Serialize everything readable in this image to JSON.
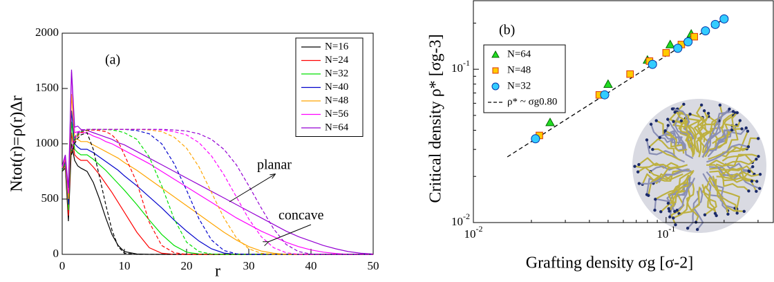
{
  "chart_data": [
    {
      "type": "line",
      "x_label": "r",
      "y_label": "Ntot(r)=ρ(r)Δr",
      "annotations": [
        {
          "text": "(a)"
        },
        {
          "text": "planar"
        },
        {
          "text": "concave"
        }
      ],
      "xlim": [
        0,
        50
      ],
      "ylim": [
        0,
        2000
      ],
      "xticks": [
        0,
        10,
        20,
        30,
        40,
        50
      ],
      "yticks": [
        0,
        500,
        1000,
        1500,
        2000
      ],
      "legend": "upper right",
      "x": [
        0,
        0.5,
        1,
        1.5,
        2,
        2.5,
        3,
        4,
        5,
        6,
        7,
        8,
        9,
        10,
        12,
        14,
        16,
        18,
        20,
        22,
        24,
        26,
        28,
        30,
        32,
        34,
        36,
        38,
        40,
        42,
        44,
        46,
        48,
        50
      ],
      "series": [
        {
          "name": "N=16",
          "color": "#000000",
          "style": "solid",
          "values": [
            750,
            780,
            300,
            1000,
            850,
            800,
            780,
            750,
            650,
            500,
            330,
            180,
            80,
            25,
            3,
            0,
            0,
            0,
            0,
            0,
            0,
            0,
            0,
            0,
            0,
            0,
            0,
            0,
            0,
            0,
            0,
            0,
            0,
            0
          ]
        },
        {
          "name": "N=24",
          "color": "#ff0000",
          "style": "solid",
          "values": [
            760,
            800,
            350,
            1100,
            900,
            870,
            850,
            850,
            790,
            720,
            640,
            560,
            470,
            380,
            200,
            60,
            10,
            0,
            0,
            0,
            0,
            0,
            0,
            0,
            0,
            0,
            0,
            0,
            0,
            0,
            0,
            0,
            0,
            0
          ]
        },
        {
          "name": "N=32",
          "color": "#00e000",
          "style": "solid",
          "values": [
            760,
            820,
            400,
            1200,
            950,
            920,
            900,
            900,
            860,
            810,
            760,
            700,
            640,
            580,
            450,
            310,
            180,
            80,
            20,
            3,
            0,
            0,
            0,
            0,
            0,
            0,
            0,
            0,
            0,
            0,
            0,
            0,
            0,
            0
          ]
        },
        {
          "name": "N=40",
          "color": "#0000cc",
          "style": "solid",
          "values": [
            770,
            840,
            450,
            1300,
            1000,
            970,
            950,
            950,
            920,
            880,
            840,
            800,
            760,
            710,
            620,
            520,
            420,
            310,
            210,
            120,
            50,
            12,
            0,
            0,
            0,
            0,
            0,
            0,
            0,
            0,
            0,
            0,
            0,
            0
          ]
        },
        {
          "name": "N=48",
          "color": "#ffa500",
          "style": "solid",
          "values": [
            780,
            860,
            500,
            1450,
            1050,
            1040,
            1020,
            1020,
            990,
            960,
            930,
            900,
            870,
            830,
            760,
            680,
            600,
            520,
            440,
            360,
            280,
            200,
            130,
            70,
            30,
            10,
            0,
            0,
            0,
            0,
            0,
            0,
            0,
            0
          ]
        },
        {
          "name": "N=56",
          "color": "#ff00ff",
          "style": "solid",
          "values": [
            790,
            880,
            550,
            1650,
            1100,
            1110,
            1100,
            1100,
            1070,
            1050,
            1020,
            1000,
            970,
            940,
            880,
            820,
            750,
            680,
            610,
            540,
            470,
            400,
            330,
            270,
            210,
            160,
            110,
            70,
            40,
            20,
            8,
            0,
            0,
            0
          ]
        },
        {
          "name": "N=64",
          "color": "#9400d3",
          "style": "solid",
          "values": [
            800,
            900,
            600,
            1670,
            1150,
            1160,
            1130,
            1120,
            1100,
            1080,
            1060,
            1040,
            1010,
            990,
            930,
            870,
            810,
            750,
            690,
            630,
            570,
            510,
            450,
            390,
            330,
            270,
            210,
            160,
            120,
            80,
            50,
            25,
            10,
            3
          ]
        },
        {
          "color": "#000000",
          "style": "dashed",
          "values": [
            null,
            null,
            null,
            900,
            1000,
            1050,
            1080,
            1100,
            950,
            700,
            450,
            220,
            70,
            10,
            0,
            0,
            0,
            0,
            0,
            0,
            0,
            0,
            0,
            0,
            0,
            0,
            0,
            0,
            0,
            0,
            0,
            0,
            0,
            0
          ]
        },
        {
          "color": "#ff0000",
          "style": "dashed",
          "values": [
            null,
            null,
            null,
            920,
            1020,
            1070,
            1100,
            1120,
            1125,
            1120,
            1110,
            1080,
            1020,
            900,
            650,
            290,
            80,
            15,
            0,
            0,
            0,
            0,
            0,
            0,
            0,
            0,
            0,
            0,
            0,
            0,
            0,
            0,
            0,
            0
          ]
        },
        {
          "color": "#00e000",
          "style": "dashed",
          "values": [
            null,
            null,
            null,
            930,
            1030,
            1080,
            1110,
            1125,
            1130,
            1130,
            1128,
            1125,
            1115,
            1100,
            1040,
            880,
            620,
            320,
            110,
            25,
            3,
            0,
            0,
            0,
            0,
            0,
            0,
            0,
            0,
            0,
            0,
            0,
            0,
            0
          ]
        },
        {
          "color": "#0000cc",
          "style": "dashed",
          "values": [
            null,
            null,
            null,
            940,
            1040,
            1090,
            1115,
            1130,
            1130,
            1130,
            1130,
            1130,
            1130,
            1130,
            1120,
            1090,
            1000,
            820,
            580,
            320,
            130,
            35,
            5,
            0,
            0,
            0,
            0,
            0,
            0,
            0,
            0,
            0,
            0,
            0
          ]
        },
        {
          "color": "#ffa500",
          "style": "dashed",
          "values": [
            null,
            null,
            null,
            945,
            1045,
            1095,
            1120,
            1130,
            1130,
            1130,
            1130,
            1130,
            1130,
            1130,
            1130,
            1125,
            1110,
            1060,
            960,
            790,
            560,
            330,
            150,
            50,
            10,
            0,
            0,
            0,
            0,
            0,
            0,
            0,
            0,
            0
          ]
        },
        {
          "color": "#ff00ff",
          "style": "dashed",
          "values": [
            null,
            null,
            null,
            950,
            1050,
            1100,
            1120,
            1130,
            1130,
            1130,
            1130,
            1130,
            1130,
            1130,
            1130,
            1130,
            1125,
            1110,
            1080,
            1010,
            890,
            720,
            520,
            320,
            160,
            60,
            15,
            0,
            0,
            0,
            0,
            0,
            0,
            0
          ]
        },
        {
          "color": "#9400d3",
          "style": "dashed",
          "values": [
            null,
            null,
            null,
            955,
            1055,
            1100,
            1125,
            1130,
            1130,
            1130,
            1130,
            1130,
            1130,
            1130,
            1130,
            1130,
            1130,
            1125,
            1115,
            1090,
            1040,
            950,
            810,
            620,
            420,
            230,
            90,
            25,
            3,
            0,
            0,
            0,
            0,
            0
          ]
        }
      ]
    },
    {
      "type": "scatter",
      "x_label": "Grafting density σg [σ-2]",
      "y_label": "Critical density ρ* [σg-3]",
      "annotations": [
        {
          "text": "(b)"
        }
      ],
      "xscale": "log",
      "yscale": "log",
      "xlim": [
        0.01,
        0.36
      ],
      "ylim": [
        0.01,
        0.28
      ],
      "xticks": [
        {
          "value": 0.01,
          "label": "10-2"
        },
        {
          "value": 0.1,
          "label": "10-1"
        }
      ],
      "yticks": [
        {
          "value": 0.01,
          "label": "10-2"
        },
        {
          "value": 0.1,
          "label": "10-1"
        }
      ],
      "legend": "upper left",
      "series": [
        {
          "name": "N=64",
          "marker": "triangle",
          "color": "#22dd22",
          "edgecolor": "#006600",
          "x": [
            0.025,
            0.05,
            0.08,
            0.105,
            0.135
          ],
          "values": [
            0.045,
            0.08,
            0.115,
            0.145,
            0.17
          ]
        },
        {
          "name": "N=48",
          "marker": "square",
          "color": "#ffcc00",
          "edgecolor": "#dd3300",
          "x": [
            0.022,
            0.045,
            0.065,
            0.082,
            0.1,
            0.12,
            0.14
          ],
          "values": [
            0.037,
            0.068,
            0.093,
            0.113,
            0.128,
            0.145,
            0.163
          ]
        },
        {
          "name": "N=32",
          "marker": "circle",
          "color": "#33ccff",
          "edgecolor": "#0033aa",
          "x": [
            0.021,
            0.048,
            0.085,
            0.115,
            0.13,
            0.16,
            0.18,
            0.2
          ],
          "values": [
            0.0352,
            0.0681,
            0.1076,
            0.137,
            0.151,
            0.178,
            0.196,
            0.213
          ]
        },
        {
          "name": "ρ* ~ σg0.80",
          "marker": "none",
          "style": "dashed",
          "color": "#000000",
          "x": [
            0.015,
            0.2
          ],
          "values": [
            0.0268,
            0.213
          ]
        }
      ]
    }
  ]
}
